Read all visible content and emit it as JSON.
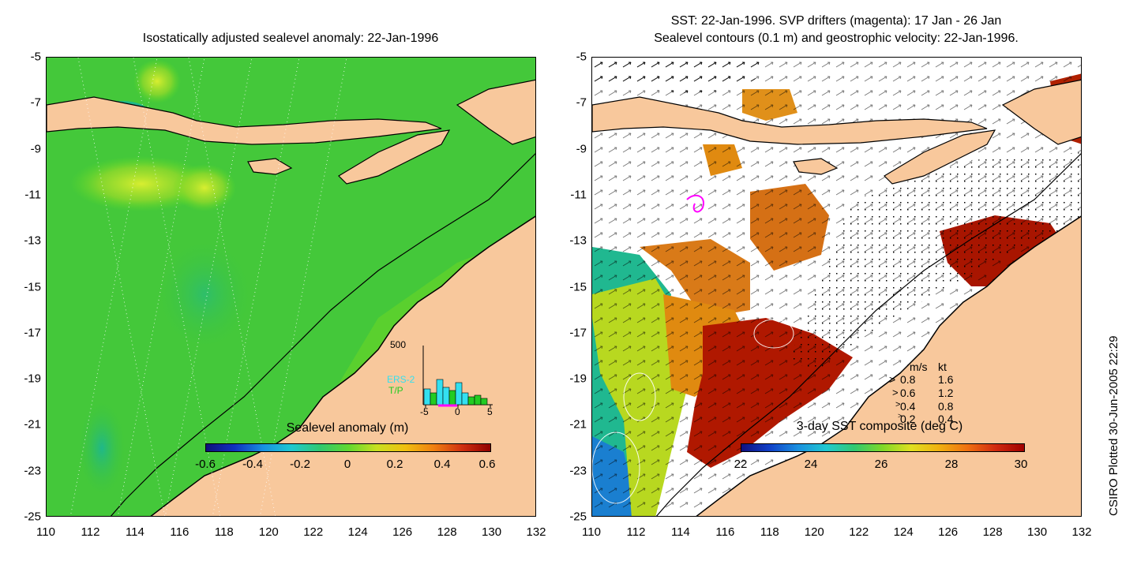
{
  "left_map": {
    "title": "Isostatically adjusted sealevel anomaly: 22-Jan-1996",
    "colorbar_title": "Sealevel anomaly (m)",
    "colorbar_ticks": [
      "-0.6",
      "-0.4",
      "-0.2",
      "0",
      "0.2",
      "0.4",
      "0.6"
    ],
    "inset": {
      "y_max_label": "500",
      "series": [
        "ERS-2",
        "T/P"
      ],
      "x_ticks": [
        "-5",
        "0",
        "5"
      ],
      "colors": {
        "ers2": "#33e0f0",
        "tp": "#22cc22",
        "marker": "#ff00ff"
      }
    }
  },
  "right_map": {
    "title_line1": "SST: 22-Jan-1996. SVP drifters (magenta): 17 Jan - 26 Jan",
    "title_line2": "Sealevel contours (0.1 m) and geostrophic velocity: 22-Jan-1996.",
    "colorbar_title": "3-day SST composite (deg C)",
    "colorbar_ticks": [
      "22",
      "24",
      "26",
      "28",
      "30"
    ],
    "vector_key": {
      "header_ms": "m/s",
      "header_kt": "kt",
      "rows": [
        {
          "ms": "0.8",
          "kt": "1.6"
        },
        {
          "ms": "0.6",
          "kt": "1.2"
        },
        {
          "ms": "0.4",
          "kt": "0.8"
        },
        {
          "ms": "0.2",
          "kt": "0.4"
        }
      ]
    }
  },
  "axes": {
    "x_ticks": [
      "110",
      "112",
      "114",
      "116",
      "118",
      "120",
      "122",
      "124",
      "126",
      "128",
      "130",
      "132"
    ],
    "y_ticks": [
      "-5",
      "-7",
      "-9",
      "-11",
      "-13",
      "-15",
      "-17",
      "-19",
      "-21",
      "-23",
      "-25"
    ]
  },
  "credit": "CSIRO Plotted 30-Jun-2005 22:29",
  "colors": {
    "land": "#f8c89c",
    "ocean_green": "#3cc43c",
    "sea_lighter": "#66dd22",
    "deep_red": "#aa1100",
    "orange": "#e07a10"
  }
}
